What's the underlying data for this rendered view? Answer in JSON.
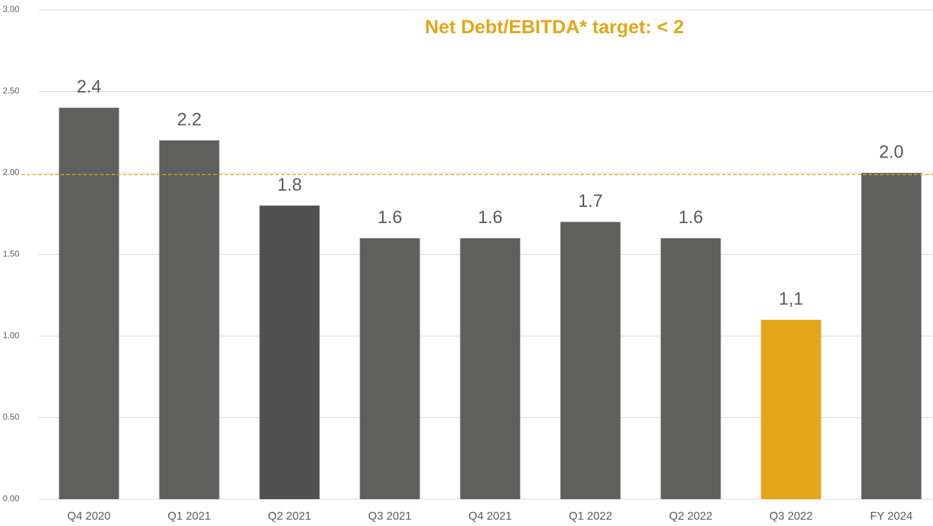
{
  "chart_data": {
    "type": "bar",
    "title": "Net Debt/EBITDA* target: < 2",
    "categories": [
      "Q4 2020",
      "Q1 2021",
      "Q2 2021",
      "Q3 2021",
      "Q4 2021",
      "Q1 2022",
      "Q2 2022",
      "Q3 2022",
      "FY 2024"
    ],
    "values": [
      2.4,
      2.2,
      1.8,
      1.6,
      1.6,
      1.7,
      1.6,
      1.1,
      2.0
    ],
    "value_labels": [
      "2.4",
      "2.2",
      "1.8",
      "1.6",
      "1.6",
      "1.7",
      "1.6",
      "1,1",
      "2.0"
    ],
    "colors": [
      "#5f5f5d",
      "#5f5f5d",
      "#505050",
      "#5f5f5d",
      "#5f5f5d",
      "#5f5f5d",
      "#5f5f5d",
      "#e3a51a",
      "#5f5f5d"
    ],
    "ylim": [
      0,
      3
    ],
    "yticks": [
      {
        "value": 0,
        "label": "0.00"
      },
      {
        "value": 0.5,
        "label": "0.50"
      },
      {
        "value": 1,
        "label": "1.00"
      },
      {
        "value": 1.5,
        "label": "1.50"
      },
      {
        "value": 2,
        "label": "2.00"
      },
      {
        "value": 2.5,
        "label": "2.50"
      },
      {
        "value": 3,
        "label": "3.00"
      }
    ],
    "grid": true,
    "reference_line": {
      "value": 1.99,
      "color": "#e3a51a"
    }
  }
}
